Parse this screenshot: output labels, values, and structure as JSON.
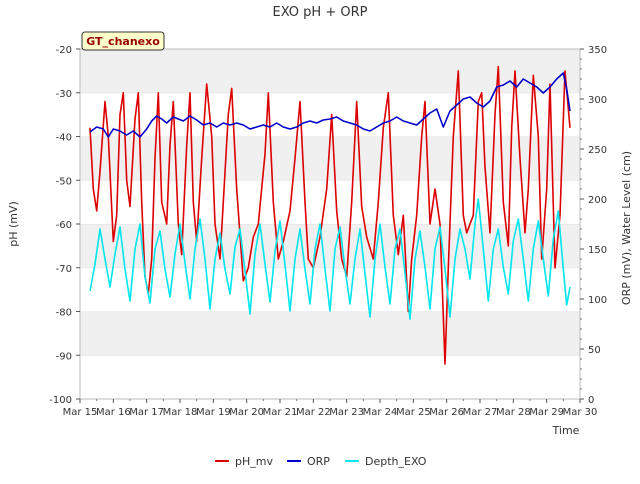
{
  "chart_data": {
    "type": "line",
    "title": "EXO pH + ORP",
    "site_label": "GT_chanexo",
    "xlabel": "Time",
    "ylabel_left": "pH (mV)",
    "ylabel_right": "ORP (mV), Water Level (cm)",
    "x_tick_labels": [
      "Mar 15",
      "Mar 16",
      "Mar 17",
      "Mar 18",
      "Mar 19",
      "Mar 20",
      "Mar 21",
      "Mar 22",
      "Mar 23",
      "Mar 24",
      "Mar 25",
      "Mar 26",
      "Mar 27",
      "Mar 28",
      "Mar 29",
      "Mar 30"
    ],
    "x_range": [
      15,
      30
    ],
    "y_left_range": [
      -100,
      -20
    ],
    "y_left_ticks": [
      -100,
      -90,
      -80,
      -70,
      -60,
      -50,
      -40,
      -30,
      -20
    ],
    "y_right_range": [
      0,
      350
    ],
    "y_right_ticks": [
      0,
      50,
      100,
      150,
      200,
      250,
      300,
      350
    ],
    "grid": true,
    "legend_position": "bottom-center",
    "series": [
      {
        "name": "pH_mv",
        "axis": "left",
        "color": "#dd0000",
        "points": [
          [
            15.3,
            -38
          ],
          [
            15.4,
            -52
          ],
          [
            15.5,
            -57
          ],
          [
            15.6,
            -48
          ],
          [
            15.75,
            -32
          ],
          [
            15.85,
            -40
          ],
          [
            16.0,
            -64
          ],
          [
            16.1,
            -58
          ],
          [
            16.2,
            -35
          ],
          [
            16.3,
            -30
          ],
          [
            16.4,
            -50
          ],
          [
            16.5,
            -56
          ],
          [
            16.65,
            -36
          ],
          [
            16.75,
            -30
          ],
          [
            16.85,
            -55
          ],
          [
            16.95,
            -72
          ],
          [
            17.05,
            -76
          ],
          [
            17.15,
            -68
          ],
          [
            17.25,
            -45
          ],
          [
            17.35,
            -30
          ],
          [
            17.45,
            -55
          ],
          [
            17.6,
            -60
          ],
          [
            17.7,
            -42
          ],
          [
            17.8,
            -32
          ],
          [
            17.95,
            -60
          ],
          [
            18.05,
            -67
          ],
          [
            18.2,
            -42
          ],
          [
            18.3,
            -30
          ],
          [
            18.4,
            -55
          ],
          [
            18.5,
            -64
          ],
          [
            18.65,
            -45
          ],
          [
            18.8,
            -28
          ],
          [
            18.95,
            -40
          ],
          [
            19.05,
            -60
          ],
          [
            19.2,
            -68
          ],
          [
            19.3,
            -55
          ],
          [
            19.45,
            -35
          ],
          [
            19.55,
            -29
          ],
          [
            19.7,
            -52
          ],
          [
            19.9,
            -73
          ],
          [
            20.05,
            -70
          ],
          [
            20.2,
            -63
          ],
          [
            20.35,
            -60
          ],
          [
            20.55,
            -44
          ],
          [
            20.65,
            -30
          ],
          [
            20.8,
            -55
          ],
          [
            20.95,
            -68
          ],
          [
            21.1,
            -64
          ],
          [
            21.3,
            -57
          ],
          [
            21.45,
            -45
          ],
          [
            21.6,
            -32
          ],
          [
            21.75,
            -55
          ],
          [
            21.85,
            -68
          ],
          [
            22.0,
            -70
          ],
          [
            22.2,
            -63
          ],
          [
            22.4,
            -52
          ],
          [
            22.55,
            -35
          ],
          [
            22.7,
            -57
          ],
          [
            22.85,
            -68
          ],
          [
            23.0,
            -72
          ],
          [
            23.15,
            -55
          ],
          [
            23.3,
            -32
          ],
          [
            23.45,
            -56
          ],
          [
            23.6,
            -63
          ],
          [
            23.8,
            -68
          ],
          [
            23.95,
            -55
          ],
          [
            24.1,
            -38
          ],
          [
            24.25,
            -30
          ],
          [
            24.4,
            -58
          ],
          [
            24.55,
            -67
          ],
          [
            24.7,
            -58
          ],
          [
            24.85,
            -80
          ],
          [
            24.95,
            -68
          ],
          [
            25.1,
            -58
          ],
          [
            25.25,
            -40
          ],
          [
            25.35,
            -32
          ],
          [
            25.5,
            -60
          ],
          [
            25.65,
            -52
          ],
          [
            25.8,
            -60
          ],
          [
            25.95,
            -92
          ],
          [
            26.05,
            -70
          ],
          [
            26.2,
            -40
          ],
          [
            26.35,
            -25
          ],
          [
            26.5,
            -58
          ],
          [
            26.6,
            -62
          ],
          [
            26.8,
            -58
          ],
          [
            26.95,
            -32
          ],
          [
            27.05,
            -30
          ],
          [
            27.15,
            -47
          ],
          [
            27.3,
            -62
          ],
          [
            27.45,
            -35
          ],
          [
            27.55,
            -24
          ],
          [
            27.7,
            -55
          ],
          [
            27.85,
            -65
          ],
          [
            27.95,
            -38
          ],
          [
            28.05,
            -25
          ],
          [
            28.2,
            -45
          ],
          [
            28.35,
            -62
          ],
          [
            28.45,
            -52
          ],
          [
            28.6,
            -26
          ],
          [
            28.75,
            -40
          ],
          [
            28.85,
            -68
          ],
          [
            29.0,
            -52
          ],
          [
            29.1,
            -28
          ],
          [
            29.25,
            -70
          ],
          [
            29.4,
            -58
          ],
          [
            29.55,
            -25
          ],
          [
            29.7,
            -38
          ]
        ]
      },
      {
        "name": "ORP",
        "axis": "right",
        "color": "#0000cc",
        "points": [
          [
            15.3,
            267
          ],
          [
            15.5,
            272
          ],
          [
            15.7,
            270
          ],
          [
            15.85,
            262
          ],
          [
            16.0,
            270
          ],
          [
            16.2,
            268
          ],
          [
            16.4,
            264
          ],
          [
            16.6,
            268
          ],
          [
            16.8,
            262
          ],
          [
            17.0,
            270
          ],
          [
            17.15,
            278
          ],
          [
            17.3,
            283
          ],
          [
            17.45,
            280
          ],
          [
            17.6,
            276
          ],
          [
            17.8,
            282
          ],
          [
            17.95,
            280
          ],
          [
            18.1,
            278
          ],
          [
            18.3,
            283
          ],
          [
            18.5,
            279
          ],
          [
            18.7,
            274
          ],
          [
            18.9,
            276
          ],
          [
            19.1,
            272
          ],
          [
            19.3,
            276
          ],
          [
            19.5,
            274
          ],
          [
            19.7,
            276
          ],
          [
            19.9,
            274
          ],
          [
            20.1,
            270
          ],
          [
            20.3,
            272
          ],
          [
            20.5,
            274
          ],
          [
            20.7,
            272
          ],
          [
            20.9,
            276
          ],
          [
            21.1,
            272
          ],
          [
            21.3,
            270
          ],
          [
            21.5,
            272
          ],
          [
            21.7,
            276
          ],
          [
            21.9,
            278
          ],
          [
            22.1,
            276
          ],
          [
            22.3,
            279
          ],
          [
            22.5,
            280
          ],
          [
            22.7,
            282
          ],
          [
            22.9,
            278
          ],
          [
            23.1,
            276
          ],
          [
            23.3,
            274
          ],
          [
            23.5,
            270
          ],
          [
            23.7,
            268
          ],
          [
            23.9,
            272
          ],
          [
            24.1,
            276
          ],
          [
            24.3,
            278
          ],
          [
            24.5,
            282
          ],
          [
            24.7,
            278
          ],
          [
            24.9,
            276
          ],
          [
            25.1,
            274
          ],
          [
            25.3,
            280
          ],
          [
            25.5,
            286
          ],
          [
            25.7,
            290
          ],
          [
            25.9,
            272
          ],
          [
            26.1,
            288
          ],
          [
            26.3,
            294
          ],
          [
            26.5,
            300
          ],
          [
            26.7,
            302
          ],
          [
            26.9,
            296
          ],
          [
            27.1,
            292
          ],
          [
            27.3,
            298
          ],
          [
            27.5,
            312
          ],
          [
            27.7,
            314
          ],
          [
            27.9,
            318
          ],
          [
            28.1,
            312
          ],
          [
            28.3,
            320
          ],
          [
            28.5,
            316
          ],
          [
            28.7,
            312
          ],
          [
            28.9,
            306
          ],
          [
            29.1,
            312
          ],
          [
            29.3,
            320
          ],
          [
            29.5,
            326
          ],
          [
            29.6,
            310
          ],
          [
            29.7,
            288
          ]
        ]
      },
      {
        "name": "Depth_EXO",
        "axis": "right",
        "color": "#00e5ee",
        "points": [
          [
            15.3,
            108
          ],
          [
            15.45,
            135
          ],
          [
            15.6,
            170
          ],
          [
            15.75,
            140
          ],
          [
            15.9,
            112
          ],
          [
            16.05,
            145
          ],
          [
            16.2,
            172
          ],
          [
            16.35,
            130
          ],
          [
            16.5,
            98
          ],
          [
            16.65,
            150
          ],
          [
            16.8,
            175
          ],
          [
            16.95,
            122
          ],
          [
            17.1,
            96
          ],
          [
            17.25,
            150
          ],
          [
            17.4,
            168
          ],
          [
            17.55,
            130
          ],
          [
            17.7,
            102
          ],
          [
            17.85,
            145
          ],
          [
            18.0,
            175
          ],
          [
            18.15,
            136
          ],
          [
            18.3,
            100
          ],
          [
            18.45,
            150
          ],
          [
            18.6,
            180
          ],
          [
            18.75,
            140
          ],
          [
            18.9,
            90
          ],
          [
            19.05,
            140
          ],
          [
            19.2,
            166
          ],
          [
            19.35,
            130
          ],
          [
            19.5,
            105
          ],
          [
            19.65,
            152
          ],
          [
            19.8,
            170
          ],
          [
            19.95,
            128
          ],
          [
            20.1,
            85
          ],
          [
            20.25,
            145
          ],
          [
            20.4,
            175
          ],
          [
            20.55,
            135
          ],
          [
            20.7,
            97
          ],
          [
            20.85,
            148
          ],
          [
            21.0,
            178
          ],
          [
            21.15,
            134
          ],
          [
            21.3,
            88
          ],
          [
            21.45,
            140
          ],
          [
            21.6,
            170
          ],
          [
            21.75,
            130
          ],
          [
            21.9,
            95
          ],
          [
            22.05,
            150
          ],
          [
            22.2,
            175
          ],
          [
            22.35,
            130
          ],
          [
            22.5,
            88
          ],
          [
            22.65,
            150
          ],
          [
            22.8,
            172
          ],
          [
            22.95,
            130
          ],
          [
            23.1,
            95
          ],
          [
            23.25,
            140
          ],
          [
            23.4,
            170
          ],
          [
            23.55,
            125
          ],
          [
            23.7,
            82
          ],
          [
            23.85,
            140
          ],
          [
            24.0,
            175
          ],
          [
            24.15,
            132
          ],
          [
            24.3,
            95
          ],
          [
            24.45,
            150
          ],
          [
            24.6,
            170
          ],
          [
            24.75,
            126
          ],
          [
            24.9,
            80
          ],
          [
            25.05,
            140
          ],
          [
            25.2,
            168
          ],
          [
            25.35,
            132
          ],
          [
            25.5,
            90
          ],
          [
            25.65,
            150
          ],
          [
            25.8,
            172
          ],
          [
            25.95,
            130
          ],
          [
            26.1,
            82
          ],
          [
            26.25,
            140
          ],
          [
            26.4,
            170
          ],
          [
            26.55,
            150
          ],
          [
            26.7,
            120
          ],
          [
            26.85,
            175
          ],
          [
            26.95,
            200
          ],
          [
            27.1,
            150
          ],
          [
            27.25,
            98
          ],
          [
            27.4,
            150
          ],
          [
            27.55,
            170
          ],
          [
            27.7,
            132
          ],
          [
            27.85,
            105
          ],
          [
            28.0,
            158
          ],
          [
            28.15,
            180
          ],
          [
            28.3,
            140
          ],
          [
            28.45,
            98
          ],
          [
            28.6,
            150
          ],
          [
            28.75,
            178
          ],
          [
            28.9,
            140
          ],
          [
            29.05,
            103
          ],
          [
            29.2,
            160
          ],
          [
            29.35,
            188
          ],
          [
            29.5,
            130
          ],
          [
            29.6,
            94
          ],
          [
            29.7,
            112
          ]
        ]
      }
    ]
  }
}
